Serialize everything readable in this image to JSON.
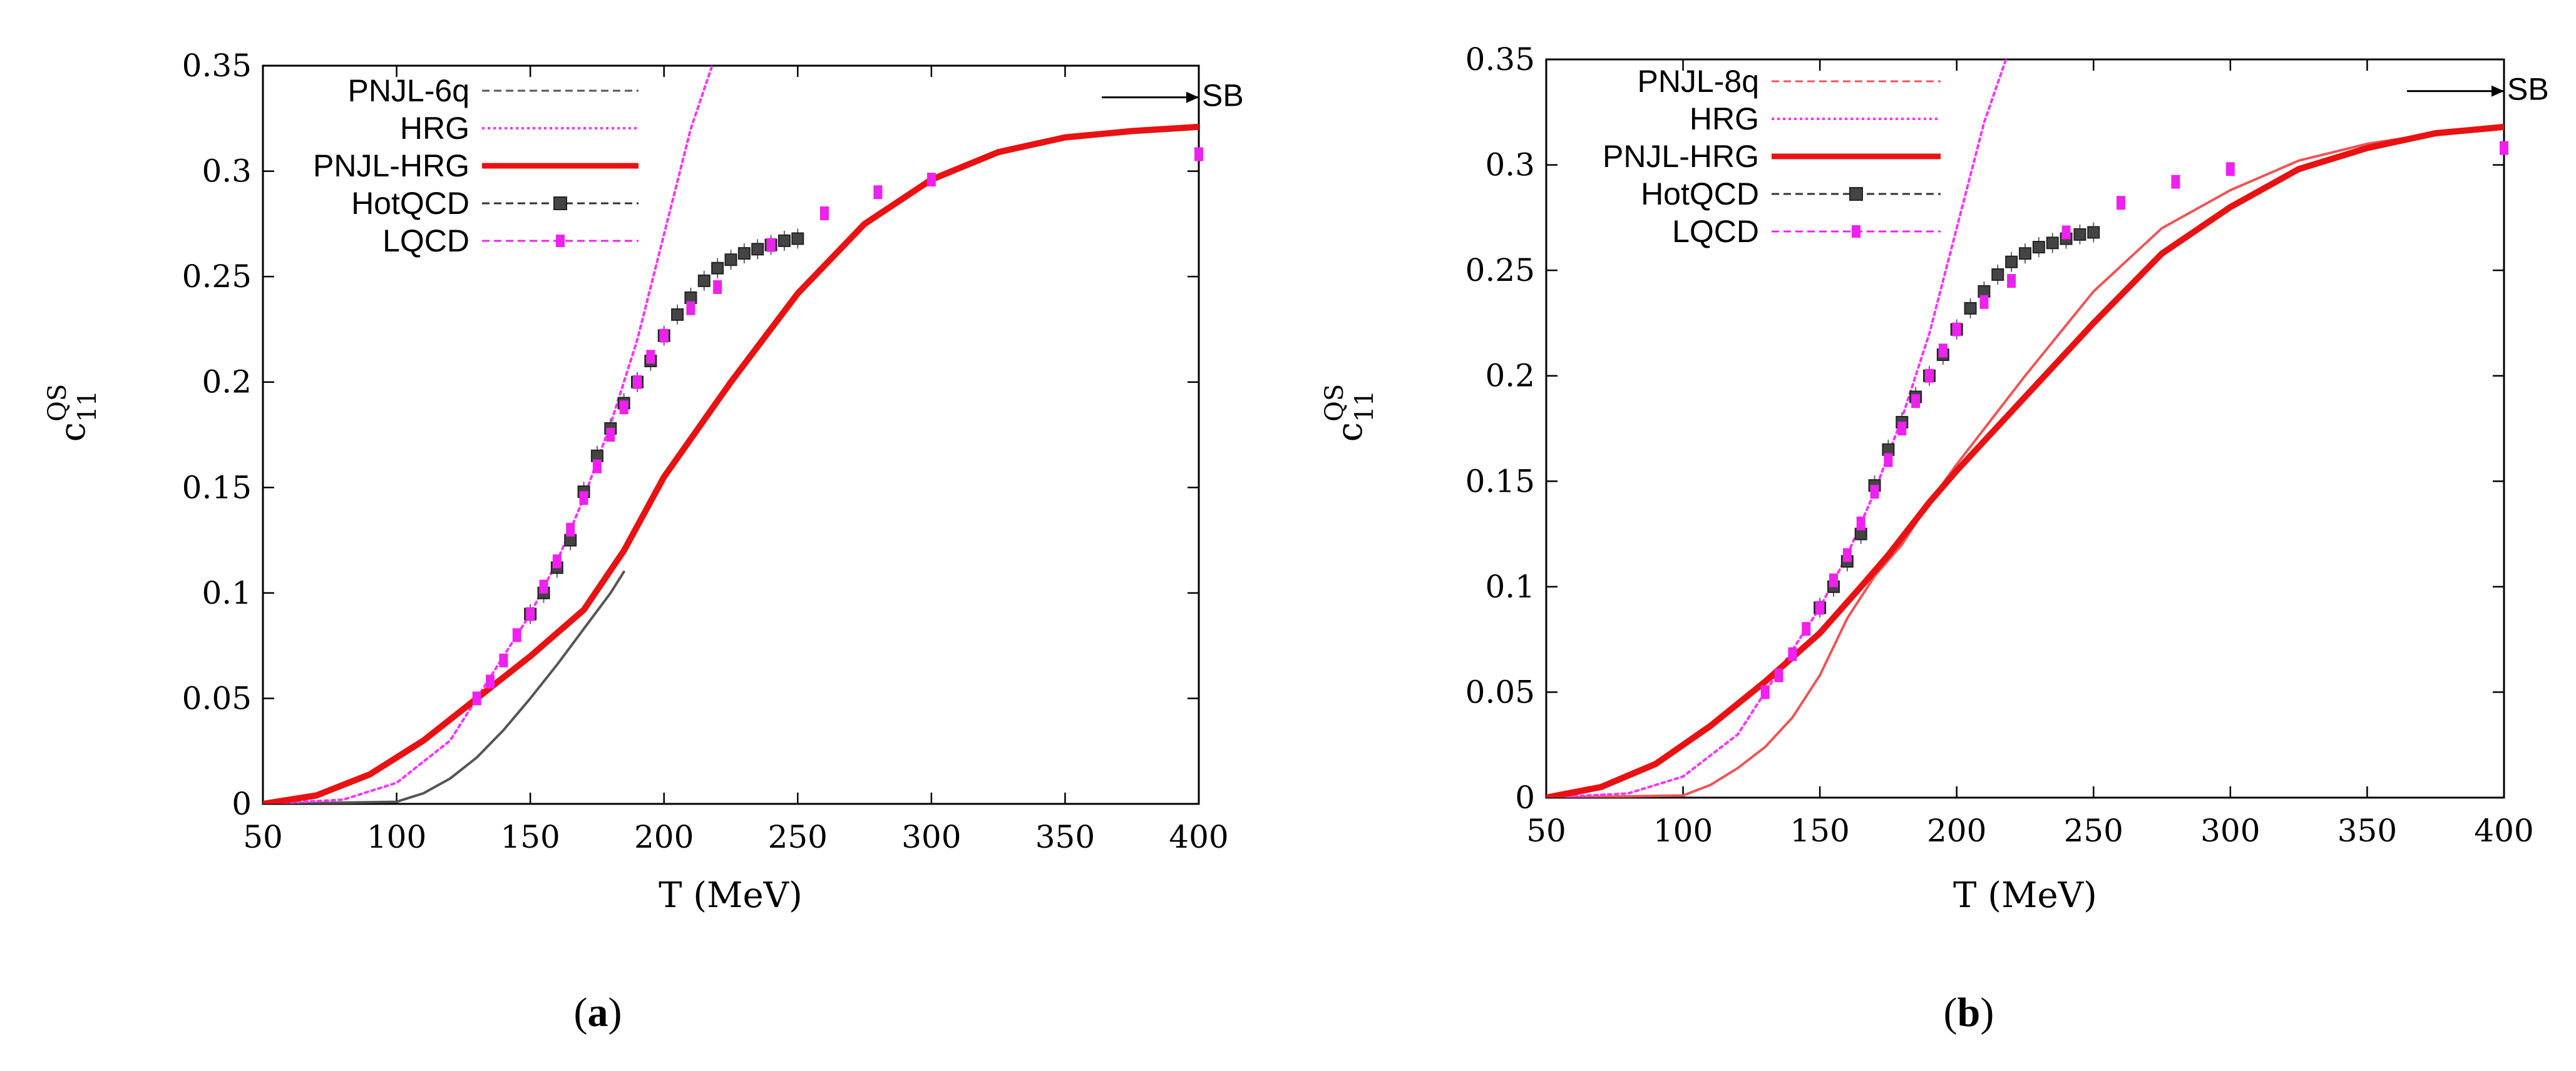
{
  "chart_data": [
    {
      "type": "line",
      "panel_label": "a",
      "xlabel": "T (MeV)",
      "ylabel_main": "c",
      "ylabel_sub": "11",
      "ylabel_sup": "QS",
      "xlim": [
        50,
        400
      ],
      "ylim": [
        0,
        0.35
      ],
      "xticks": [
        50,
        100,
        150,
        200,
        250,
        300,
        350,
        400
      ],
      "yticks": [
        0,
        0.05,
        0.1,
        0.15,
        0.2,
        0.25,
        0.3,
        0.35
      ],
      "xtick_labels": [
        "50",
        "100",
        "150",
        "200",
        "250",
        "300",
        "350",
        "400"
      ],
      "ytick_labels": [
        "0",
        "0.05",
        "0.1",
        "0.15",
        "0.2",
        "0.25",
        "0.3",
        "0.35"
      ],
      "sb_label": "SB",
      "sb_value": 0.335,
      "legend_position": "top-left",
      "legend": [
        {
          "label": "PNJL-6q",
          "color": "#555555",
          "style": "dashed"
        },
        {
          "label": "HRG",
          "color": "#ff33ff",
          "style": "dotted"
        },
        {
          "label": "PNJL-HRG",
          "color": "#e81212",
          "style": "solid"
        },
        {
          "label": "HotQCD",
          "color": "#333333",
          "style": "dashed-marker"
        },
        {
          "label": "LQCD",
          "color": "#ee22ee",
          "style": "dashed-marker"
        }
      ],
      "series": [
        {
          "name": "PNJL-6q",
          "kind": "line",
          "color": "#555555",
          "width": 4,
          "x": [
            50,
            100,
            110,
            120,
            130,
            140,
            150,
            160,
            170,
            180,
            185
          ],
          "y": [
            0,
            0.001,
            0.005,
            0.012,
            0.022,
            0.035,
            0.05,
            0.066,
            0.083,
            0.1,
            0.11
          ]
        },
        {
          "name": "HRG",
          "kind": "line",
          "color": "#ff33ff",
          "width": 4,
          "dash": "5,6",
          "x": [
            50,
            80,
            100,
            120,
            130,
            140,
            150,
            160,
            170,
            180,
            190,
            200,
            210,
            218
          ],
          "y": [
            0,
            0.002,
            0.01,
            0.03,
            0.05,
            0.07,
            0.09,
            0.115,
            0.145,
            0.18,
            0.22,
            0.27,
            0.32,
            0.35
          ]
        },
        {
          "name": "PNJL-HRG",
          "kind": "line",
          "color": "#e81212",
          "width": 10,
          "x": [
            50,
            70,
            90,
            110,
            130,
            150,
            170,
            185,
            200,
            225,
            250,
            275,
            300,
            325,
            350,
            375,
            400
          ],
          "y": [
            0,
            0.004,
            0.014,
            0.03,
            0.05,
            0.07,
            0.092,
            0.12,
            0.155,
            0.2,
            0.242,
            0.275,
            0.296,
            0.309,
            0.316,
            0.319,
            0.321
          ]
        },
        {
          "name": "HotQCD",
          "kind": "points",
          "color": "#333333",
          "x": [
            150,
            155,
            160,
            165,
            170,
            175,
            180,
            185,
            190,
            195,
            200,
            205,
            210,
            215,
            220,
            225,
            230,
            235,
            240,
            245,
            250
          ],
          "y": [
            0.09,
            0.1,
            0.112,
            0.125,
            0.148,
            0.165,
            0.178,
            0.19,
            0.2,
            0.21,
            0.222,
            0.232,
            0.24,
            0.248,
            0.254,
            0.258,
            0.261,
            0.263,
            0.265,
            0.267,
            0.268
          ]
        },
        {
          "name": "LQCD",
          "kind": "points",
          "color": "#ee22ee",
          "x": [
            130,
            135,
            140,
            145,
            150,
            155,
            160,
            165,
            170,
            175,
            180,
            185,
            190,
            195,
            200,
            210,
            220,
            240,
            260,
            280,
            300,
            400
          ],
          "y": [
            0.05,
            0.058,
            0.068,
            0.08,
            0.09,
            0.103,
            0.115,
            0.13,
            0.145,
            0.16,
            0.175,
            0.188,
            0.2,
            0.212,
            0.222,
            0.235,
            0.245,
            0.265,
            0.28,
            0.29,
            0.296,
            0.308
          ]
        }
      ]
    },
    {
      "type": "line",
      "panel_label": "b",
      "xlabel": "T (MeV)",
      "ylabel_main": "c",
      "ylabel_sub": "11",
      "ylabel_sup": "QS",
      "xlim": [
        50,
        400
      ],
      "ylim": [
        0,
        0.35
      ],
      "xticks": [
        50,
        100,
        150,
        200,
        250,
        300,
        350,
        400
      ],
      "yticks": [
        0,
        0.05,
        0.1,
        0.15,
        0.2,
        0.25,
        0.3,
        0.35
      ],
      "xtick_labels": [
        "50",
        "100",
        "150",
        "200",
        "250",
        "300",
        "350",
        "400"
      ],
      "ytick_labels": [
        "0",
        "0.05",
        "0.1",
        "0.15",
        "0.2",
        "0.25",
        "0.3",
        "0.35"
      ],
      "sb_label": "SB",
      "sb_value": 0.335,
      "legend_position": "top-left",
      "legend": [
        {
          "label": "PNJL-8q",
          "color": "#ee5555",
          "style": "dashed"
        },
        {
          "label": "HRG",
          "color": "#ff33ff",
          "style": "dotted"
        },
        {
          "label": "PNJL-HRG",
          "color": "#e81212",
          "style": "solid"
        },
        {
          "label": "HotQCD",
          "color": "#333333",
          "style": "dashed-marker"
        },
        {
          "label": "LQCD",
          "color": "#ee22ee",
          "style": "dashed-marker"
        }
      ],
      "series": [
        {
          "name": "PNJL-8q",
          "kind": "line",
          "color": "#ee5555",
          "width": 4,
          "x": [
            50,
            100,
            110,
            120,
            130,
            140,
            150,
            160,
            165,
            170,
            180,
            190,
            200,
            225,
            250,
            275,
            300,
            325,
            350,
            375,
            400
          ],
          "y": [
            0,
            0.001,
            0.006,
            0.014,
            0.024,
            0.038,
            0.058,
            0.085,
            0.095,
            0.105,
            0.12,
            0.14,
            0.158,
            0.2,
            0.24,
            0.27,
            0.288,
            0.302,
            0.31,
            0.315,
            0.318
          ]
        },
        {
          "name": "HRG",
          "kind": "line",
          "color": "#ff33ff",
          "width": 4,
          "dash": "5,6",
          "x": [
            50,
            80,
            100,
            120,
            130,
            140,
            150,
            160,
            170,
            180,
            190,
            200,
            210,
            218
          ],
          "y": [
            0,
            0.002,
            0.01,
            0.03,
            0.05,
            0.07,
            0.09,
            0.115,
            0.145,
            0.18,
            0.22,
            0.27,
            0.32,
            0.35
          ]
        },
        {
          "name": "PNJL-HRG",
          "kind": "line",
          "color": "#e81212",
          "width": 10,
          "x": [
            50,
            70,
            90,
            110,
            130,
            150,
            165,
            175,
            190,
            200,
            225,
            250,
            275,
            300,
            325,
            350,
            375,
            400
          ],
          "y": [
            0,
            0.005,
            0.016,
            0.034,
            0.055,
            0.078,
            0.1,
            0.115,
            0.14,
            0.155,
            0.19,
            0.225,
            0.258,
            0.28,
            0.298,
            0.308,
            0.315,
            0.318
          ]
        },
        {
          "name": "HotQCD",
          "kind": "points",
          "color": "#333333",
          "x": [
            150,
            155,
            160,
            165,
            170,
            175,
            180,
            185,
            190,
            195,
            200,
            205,
            210,
            215,
            220,
            225,
            230,
            235,
            240,
            245,
            250
          ],
          "y": [
            0.09,
            0.1,
            0.112,
            0.125,
            0.148,
            0.165,
            0.178,
            0.19,
            0.2,
            0.21,
            0.222,
            0.232,
            0.24,
            0.248,
            0.254,
            0.258,
            0.261,
            0.263,
            0.265,
            0.267,
            0.268
          ]
        },
        {
          "name": "LQCD",
          "kind": "points",
          "color": "#ee22ee",
          "x": [
            130,
            135,
            140,
            145,
            150,
            155,
            160,
            165,
            170,
            175,
            180,
            185,
            190,
            195,
            200,
            210,
            220,
            240,
            260,
            280,
            300,
            400
          ],
          "y": [
            0.05,
            0.058,
            0.068,
            0.08,
            0.09,
            0.103,
            0.115,
            0.13,
            0.145,
            0.16,
            0.175,
            0.188,
            0.2,
            0.212,
            0.222,
            0.235,
            0.245,
            0.268,
            0.282,
            0.292,
            0.298,
            0.308
          ]
        }
      ]
    }
  ]
}
